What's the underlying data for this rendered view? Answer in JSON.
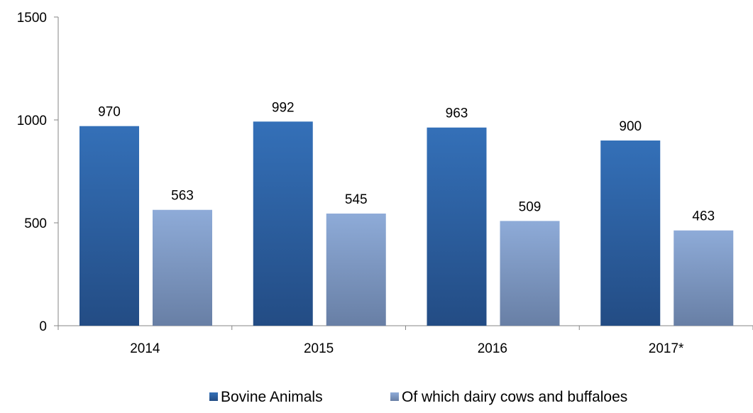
{
  "chart_data": {
    "type": "bar",
    "categories": [
      "2014",
      "2015",
      "2016",
      "2017*"
    ],
    "series": [
      {
        "name": "Bovine Animals",
        "values": [
          970,
          992,
          963,
          900
        ],
        "color_top": "#3470b8",
        "color_bottom": "#234c84"
      },
      {
        "name": "Of which dairy cows and buffaloes",
        "values": [
          563,
          545,
          509,
          463
        ],
        "color_top": "#8eabd8",
        "color_bottom": "#687fa5"
      }
    ],
    "ylim": [
      0,
      1500
    ],
    "yticks": [
      0,
      500,
      1000,
      1500
    ],
    "ytick_labels": [
      "0",
      "500",
      "1000",
      "1500"
    ],
    "data_labels": true,
    "grid": false,
    "legend_position": "bottom",
    "title": "",
    "xlabel": "",
    "ylabel": ""
  }
}
